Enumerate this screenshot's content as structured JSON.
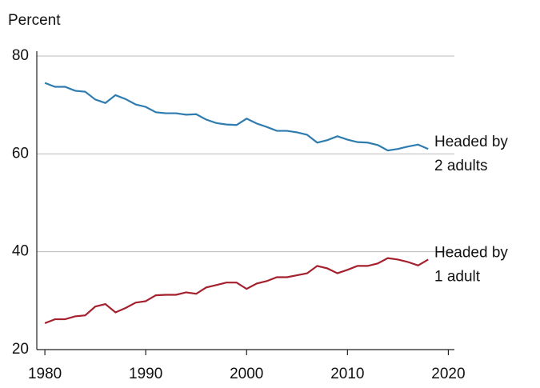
{
  "chart_data": {
    "type": "line",
    "y_axis_label": "Percent",
    "x": [
      1980,
      1981,
      1982,
      1983,
      1984,
      1985,
      1986,
      1987,
      1988,
      1989,
      1990,
      1991,
      1992,
      1993,
      1994,
      1995,
      1996,
      1997,
      1998,
      1999,
      2000,
      2001,
      2002,
      2003,
      2004,
      2005,
      2006,
      2007,
      2008,
      2009,
      2010,
      2011,
      2012,
      2013,
      2014,
      2015,
      2016,
      2017,
      2018
    ],
    "series": [
      {
        "label_lines": [
          "Headed by",
          "2 adults"
        ],
        "color": "#2e7bb0",
        "values": [
          74.5,
          73.7,
          73.7,
          72.9,
          72.7,
          71.1,
          70.4,
          72.0,
          71.2,
          70.1,
          69.6,
          68.5,
          68.3,
          68.3,
          68.0,
          68.1,
          67.0,
          66.3,
          66.0,
          65.9,
          67.2,
          66.2,
          65.5,
          64.7,
          64.7,
          64.4,
          63.9,
          62.3,
          62.8,
          63.6,
          62.9,
          62.4,
          62.3,
          61.8,
          60.7,
          61.0,
          61.5,
          61.9,
          61.0
        ]
      },
      {
        "label_lines": [
          "Headed by",
          "1 adult"
        ],
        "color": "#a3202c",
        "values": [
          25.4,
          26.2,
          26.2,
          26.8,
          27.0,
          28.8,
          29.3,
          27.6,
          28.5,
          29.6,
          29.9,
          31.1,
          31.2,
          31.2,
          31.7,
          31.4,
          32.7,
          33.2,
          33.7,
          33.7,
          32.4,
          33.5,
          34.0,
          34.8,
          34.8,
          35.2,
          35.6,
          37.1,
          36.6,
          35.6,
          36.3,
          37.1,
          37.1,
          37.6,
          38.7,
          38.4,
          37.9,
          37.2,
          38.4
        ]
      }
    ],
    "xlim": [
      1979.2,
      2020.6
    ],
    "xticks": [
      1980,
      1990,
      2000,
      2010,
      2020
    ],
    "ylim": [
      20,
      80
    ],
    "yticks": [
      20,
      40,
      60,
      80
    ],
    "grid": true
  }
}
